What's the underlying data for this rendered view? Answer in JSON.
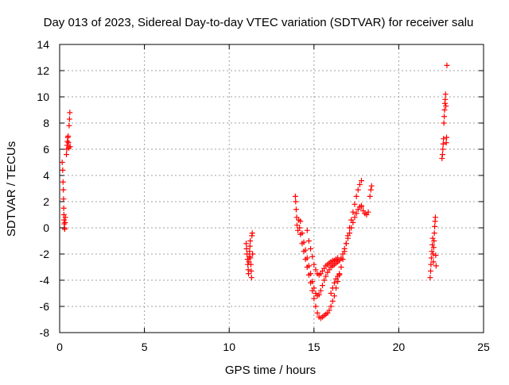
{
  "chart_data": {
    "type": "scatter",
    "title": "Day 013 of 2023, Sidereal Day-to-day VTEC variation (SDTVAR) for receiver salu",
    "xlabel": "GPS time / hours",
    "ylabel": "SDTVAR / TECUs",
    "xlim": [
      0,
      25
    ],
    "ylim": [
      -8,
      14
    ],
    "xticks": [
      0,
      5,
      10,
      15,
      20,
      25
    ],
    "yticks": [
      -8,
      -6,
      -4,
      -2,
      0,
      2,
      4,
      6,
      8,
      10,
      12,
      14
    ],
    "grid": true,
    "marker": "plus",
    "color": "#ff0000",
    "legend": "none",
    "series": [
      {
        "values": [
          [
            0.15,
            5.0
          ],
          [
            0.18,
            4.4
          ],
          [
            0.2,
            3.5
          ],
          [
            0.22,
            2.9
          ],
          [
            0.23,
            2.2
          ],
          [
            0.24,
            1.5
          ],
          [
            0.25,
            1.0
          ],
          [
            0.26,
            0.6
          ],
          [
            0.27,
            0.3
          ],
          [
            0.28,
            0.0
          ],
          [
            0.3,
            -0.1
          ],
          [
            0.32,
            0.4
          ],
          [
            0.34,
            0.8
          ],
          [
            0.4,
            5.6
          ],
          [
            0.42,
            6.0
          ],
          [
            0.44,
            6.3
          ],
          [
            0.46,
            6.6
          ],
          [
            0.48,
            6.9
          ],
          [
            0.5,
            7.0
          ],
          [
            0.52,
            6.5
          ],
          [
            0.54,
            6.1
          ],
          [
            0.56,
            7.8
          ],
          [
            0.58,
            8.3
          ],
          [
            0.6,
            8.8
          ],
          [
            0.62,
            6.2
          ],
          [
            11.0,
            -1.2
          ],
          [
            11.02,
            -1.6
          ],
          [
            11.05,
            -2.0
          ],
          [
            11.08,
            -2.4
          ],
          [
            11.1,
            -2.8
          ],
          [
            11.12,
            -3.2
          ],
          [
            11.14,
            -3.5
          ],
          [
            11.16,
            -2.6
          ],
          [
            11.18,
            -2.2
          ],
          [
            11.2,
            -1.8
          ],
          [
            11.22,
            -1.4
          ],
          [
            11.24,
            -1.0
          ],
          [
            11.26,
            -2.3
          ],
          [
            11.28,
            -2.8
          ],
          [
            11.3,
            -3.3
          ],
          [
            11.32,
            -3.8
          ],
          [
            11.34,
            -0.6
          ],
          [
            11.36,
            -0.4
          ],
          [
            11.38,
            -2.0
          ],
          [
            13.9,
            2.4
          ],
          [
            13.92,
            2.0
          ],
          [
            13.95,
            1.4
          ],
          [
            13.98,
            0.8
          ],
          [
            14.0,
            0.2
          ],
          [
            14.05,
            -0.2
          ],
          [
            14.1,
            0.6
          ],
          [
            14.15,
            0.0
          ],
          [
            14.2,
            -0.5
          ],
          [
            14.3,
            -1.2
          ],
          [
            14.4,
            -1.8
          ],
          [
            14.5,
            -2.4
          ],
          [
            14.6,
            -3.0
          ],
          [
            14.7,
            -3.6
          ],
          [
            14.8,
            -4.2
          ],
          [
            14.9,
            -4.8
          ],
          [
            15.0,
            -5.4
          ],
          [
            15.1,
            -6.0
          ],
          [
            15.2,
            -6.5
          ],
          [
            15.3,
            -6.8
          ],
          [
            15.4,
            -6.9
          ],
          [
            15.5,
            -6.8
          ],
          [
            15.6,
            -6.7
          ],
          [
            15.7,
            -6.6
          ],
          [
            15.8,
            -6.5
          ],
          [
            15.9,
            -6.3
          ],
          [
            16.0,
            -6.0
          ],
          [
            16.1,
            -5.6
          ],
          [
            16.2,
            -5.2
          ],
          [
            16.3,
            -4.6
          ],
          [
            16.4,
            -4.1
          ],
          [
            16.5,
            -3.5
          ],
          [
            16.6,
            -3.0
          ],
          [
            16.7,
            -2.4
          ],
          [
            16.8,
            -1.8
          ],
          [
            16.9,
            -1.2
          ],
          [
            17.0,
            -0.6
          ],
          [
            17.1,
            0.0
          ],
          [
            17.2,
            0.6
          ],
          [
            17.3,
            1.2
          ],
          [
            17.4,
            1.8
          ],
          [
            17.5,
            2.4
          ],
          [
            17.6,
            2.9
          ],
          [
            17.7,
            3.3
          ],
          [
            17.8,
            3.6
          ],
          [
            14.2,
            0.5
          ],
          [
            14.3,
            -0.4
          ],
          [
            14.4,
            -1.1
          ],
          [
            14.5,
            -1.7
          ],
          [
            14.6,
            -2.3
          ],
          [
            14.7,
            -2.9
          ],
          [
            14.8,
            -3.5
          ],
          [
            14.9,
            -4.1
          ],
          [
            15.0,
            -4.6
          ],
          [
            15.1,
            -5.0
          ],
          [
            15.2,
            -5.2
          ],
          [
            15.3,
            -5.1
          ],
          [
            15.4,
            -4.8
          ],
          [
            15.5,
            -4.4
          ],
          [
            15.6,
            -4.0
          ],
          [
            15.7,
            -3.7
          ],
          [
            15.8,
            -3.4
          ],
          [
            15.9,
            -3.2
          ],
          [
            16.0,
            -3.0
          ],
          [
            16.1,
            -2.9
          ],
          [
            16.2,
            -2.8
          ],
          [
            16.3,
            -2.7
          ],
          [
            16.4,
            -2.6
          ],
          [
            16.5,
            -2.5
          ],
          [
            16.6,
            -2.3
          ],
          [
            16.7,
            -2.0
          ],
          [
            16.8,
            -1.6
          ],
          [
            16.9,
            -1.2
          ],
          [
            17.0,
            -0.8
          ],
          [
            17.1,
            -0.4
          ],
          [
            17.2,
            0.0
          ],
          [
            17.3,
            0.4
          ],
          [
            17.4,
            0.8
          ],
          [
            17.5,
            1.1
          ],
          [
            17.6,
            1.4
          ],
          [
            17.7,
            1.6
          ],
          [
            17.8,
            1.7
          ],
          [
            14.6,
            -0.2
          ],
          [
            14.7,
            -1.0
          ],
          [
            14.8,
            -1.6
          ],
          [
            14.9,
            -2.2
          ],
          [
            15.0,
            -2.8
          ],
          [
            15.1,
            -3.2
          ],
          [
            15.2,
            -3.5
          ],
          [
            15.3,
            -3.6
          ],
          [
            15.4,
            -3.5
          ],
          [
            15.5,
            -3.3
          ],
          [
            15.6,
            -3.1
          ],
          [
            15.7,
            -2.9
          ],
          [
            15.8,
            -2.8
          ],
          [
            15.9,
            -2.7
          ],
          [
            16.0,
            -2.6
          ],
          [
            16.1,
            -2.5
          ],
          [
            16.2,
            -2.5
          ],
          [
            16.3,
            -2.4
          ],
          [
            16.4,
            -2.3
          ],
          [
            17.8,
            1.6
          ],
          [
            17.9,
            1.3
          ],
          [
            18.0,
            1.1
          ],
          [
            18.1,
            1.0
          ],
          [
            18.2,
            1.2
          ],
          [
            18.3,
            2.4
          ],
          [
            18.35,
            2.9
          ],
          [
            18.4,
            3.2
          ],
          [
            16.0,
            -5.0
          ],
          [
            16.1,
            -4.6
          ],
          [
            16.2,
            -4.2
          ],
          [
            16.3,
            -3.9
          ],
          [
            16.4,
            -3.7
          ],
          [
            16.5,
            -3.6
          ],
          [
            21.85,
            -3.8
          ],
          [
            21.88,
            -3.3
          ],
          [
            21.9,
            -2.8
          ],
          [
            21.92,
            -2.3
          ],
          [
            21.95,
            -1.8
          ],
          [
            21.98,
            -1.3
          ],
          [
            22.0,
            -0.8
          ],
          [
            22.02,
            -2.0
          ],
          [
            22.04,
            -2.6
          ],
          [
            22.06,
            -1.5
          ],
          [
            22.08,
            -1.0
          ],
          [
            22.1,
            -0.4
          ],
          [
            22.12,
            0.1
          ],
          [
            22.14,
            0.5
          ],
          [
            22.16,
            0.8
          ],
          [
            22.18,
            -2.1
          ],
          [
            22.2,
            -2.9
          ],
          [
            22.55,
            5.3
          ],
          [
            22.58,
            5.6
          ],
          [
            22.6,
            6.0
          ],
          [
            22.62,
            6.4
          ],
          [
            22.64,
            6.8
          ],
          [
            22.66,
            8.0
          ],
          [
            22.68,
            8.5
          ],
          [
            22.7,
            9.0
          ],
          [
            22.72,
            9.5
          ],
          [
            22.74,
            9.8
          ],
          [
            22.76,
            10.2
          ],
          [
            22.78,
            9.3
          ],
          [
            22.8,
            6.5
          ],
          [
            22.82,
            6.9
          ],
          [
            22.84,
            12.4
          ]
        ]
      }
    ]
  }
}
